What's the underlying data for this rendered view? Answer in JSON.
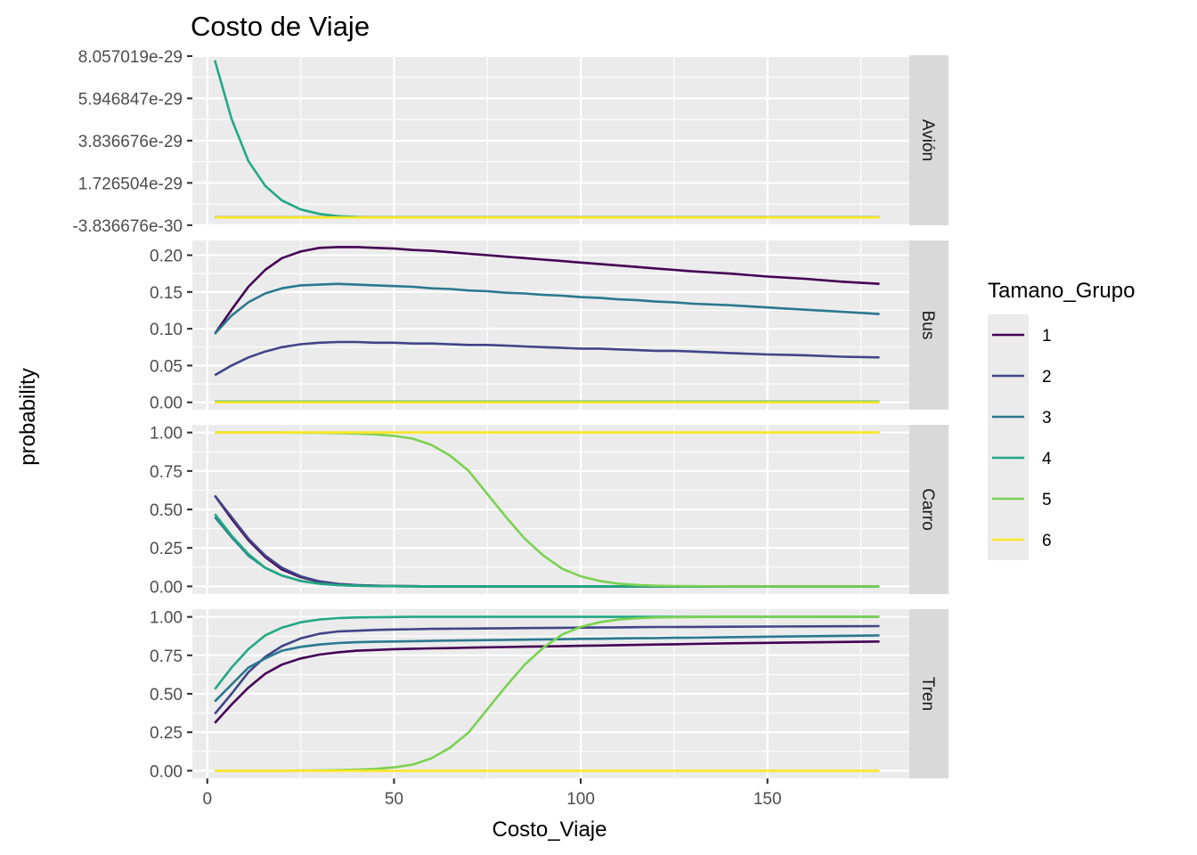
{
  "chart_data": {
    "type": "line",
    "title": "Costo de Viaje",
    "xlabel": "Costo_Viaje",
    "ylabel": "probability",
    "x_ticks": [
      0,
      50,
      100,
      150
    ],
    "xlim": [
      -4,
      188
    ],
    "grid": true,
    "legend": {
      "title": "Tamano_Grupo",
      "placement": "right",
      "entries": [
        {
          "label": "1",
          "color": "#440154"
        },
        {
          "label": "2",
          "color": "#414487"
        },
        {
          "label": "3",
          "color": "#2A788E"
        },
        {
          "label": "4",
          "color": "#22A884"
        },
        {
          "label": "5",
          "color": "#7AD151"
        },
        {
          "label": "6",
          "color": "#FDE725"
        }
      ]
    },
    "x": [
      2,
      6.5,
      11,
      15.5,
      20,
      25,
      30,
      35,
      40,
      45,
      50,
      55,
      60,
      65,
      70,
      75,
      80,
      85,
      90,
      95,
      100,
      105,
      110,
      115,
      120,
      125,
      130,
      140,
      150,
      160,
      170,
      180
    ],
    "facets": [
      {
        "label": "Avión",
        "y_ticks": [
          "8.057019e-29",
          "5.946847e-29",
          "3.836676e-29",
          "1.726504e-29",
          "-3.836676e-30"
        ],
        "y_tick_values": [
          8.057019e-29,
          5.946847e-29,
          3.836676e-29,
          1.726504e-29,
          -3.836676e-30
        ],
        "ylim": [
          -3.9e-30,
          8.1e-29
        ],
        "series": [
          {
            "group": "1",
            "values": [
              0,
              0,
              0,
              0,
              0,
              0,
              0,
              0,
              0,
              0,
              0,
              0,
              0,
              0,
              0,
              0,
              0,
              0,
              0,
              0,
              0,
              0,
              0,
              0,
              0,
              0,
              0,
              0,
              0,
              0,
              0,
              0
            ]
          },
          {
            "group": "2",
            "values": [
              0,
              0,
              0,
              0,
              0,
              0,
              0,
              0,
              0,
              0,
              0,
              0,
              0,
              0,
              0,
              0,
              0,
              0,
              0,
              0,
              0,
              0,
              0,
              0,
              0,
              0,
              0,
              0,
              0,
              0,
              0,
              0
            ]
          },
          {
            "group": "3",
            "values": [
              0,
              0,
              0,
              0,
              0,
              0,
              0,
              0,
              0,
              0,
              0,
              0,
              0,
              0,
              0,
              0,
              0,
              0,
              0,
              0,
              0,
              0,
              0,
              0,
              0,
              0,
              0,
              0,
              0,
              0,
              0,
              0
            ]
          },
          {
            "group": "4",
            "values": [
              7.85e-29,
              4.92e-29,
              2.82e-29,
              1.58e-29,
              8.5e-30,
              4e-30,
              1.8e-30,
              7e-31,
              3e-31,
              1e-31,
              0,
              0,
              0,
              0,
              0,
              0,
              0,
              0,
              0,
              0,
              0,
              0,
              0,
              0,
              0,
              0,
              0,
              0,
              0,
              0,
              0,
              0
            ]
          },
          {
            "group": "5",
            "values": [
              0,
              0,
              0,
              0,
              0,
              0,
              0,
              0,
              0,
              0,
              0,
              0,
              0,
              0,
              0,
              0,
              0,
              0,
              0,
              0,
              0,
              0,
              0,
              0,
              0,
              0,
              0,
              0,
              0,
              0,
              0,
              0
            ]
          },
          {
            "group": "6",
            "values": [
              0,
              0,
              0,
              0,
              0,
              0,
              0,
              0,
              0,
              0,
              0,
              0,
              0,
              0,
              0,
              0,
              0,
              0,
              0,
              0,
              0,
              0,
              0,
              0,
              0,
              0,
              0,
              0,
              0,
              0,
              0,
              0
            ]
          }
        ]
      },
      {
        "label": "Bus",
        "y_ticks": [
          "0.20",
          "0.15",
          "0.10",
          "0.05",
          "0.00"
        ],
        "y_tick_values": [
          0.2,
          0.15,
          0.1,
          0.05,
          0.0
        ],
        "ylim": [
          -0.01,
          0.22
        ],
        "series": [
          {
            "group": "1",
            "values": [
              0.093,
              0.126,
              0.157,
              0.18,
              0.196,
              0.205,
              0.21,
              0.211,
              0.211,
              0.21,
              0.209,
              0.207,
              0.206,
              0.204,
              0.202,
              0.2,
              0.198,
              0.196,
              0.194,
              0.192,
              0.19,
              0.188,
              0.186,
              0.184,
              0.182,
              0.18,
              0.178,
              0.175,
              0.171,
              0.168,
              0.164,
              0.161
            ]
          },
          {
            "group": "2",
            "values": [
              0.037,
              0.05,
              0.061,
              0.069,
              0.075,
              0.079,
              0.081,
              0.082,
              0.082,
              0.081,
              0.081,
              0.08,
              0.08,
              0.079,
              0.078,
              0.078,
              0.077,
              0.076,
              0.075,
              0.074,
              0.073,
              0.073,
              0.072,
              0.071,
              0.07,
              0.07,
              0.069,
              0.067,
              0.065,
              0.064,
              0.062,
              0.061
            ]
          },
          {
            "group": "3",
            "values": [
              0.093,
              0.118,
              0.136,
              0.148,
              0.155,
              0.159,
              0.16,
              0.161,
              0.16,
              0.159,
              0.158,
              0.157,
              0.155,
              0.154,
              0.152,
              0.151,
              0.149,
              0.148,
              0.146,
              0.145,
              0.143,
              0.142,
              0.14,
              0.139,
              0.137,
              0.136,
              0.134,
              0.132,
              0.129,
              0.126,
              0.123,
              0.12
            ]
          },
          {
            "group": "4",
            "values": [
              0.001,
              0.001,
              0.001,
              0.001,
              0.001,
              0.001,
              0.001,
              0.001,
              0.001,
              0.001,
              0.001,
              0.001,
              0.001,
              0.001,
              0.001,
              0.001,
              0.001,
              0.001,
              0.001,
              0.001,
              0.001,
              0.001,
              0.001,
              0.001,
              0.001,
              0.001,
              0.001,
              0.001,
              0.001,
              0.001,
              0.001,
              0.001
            ]
          },
          {
            "group": "5",
            "values": [
              0,
              0,
              0,
              0,
              0,
              0,
              0,
              0,
              0,
              0,
              0,
              0,
              0,
              0,
              0,
              0,
              0,
              0,
              0,
              0,
              0,
              0,
              0,
              0,
              0,
              0,
              0,
              0,
              0,
              0,
              0,
              0
            ]
          },
          {
            "group": "6",
            "values": [
              0,
              0,
              0,
              0,
              0,
              0,
              0,
              0,
              0,
              0,
              0,
              0,
              0,
              0,
              0,
              0,
              0,
              0,
              0,
              0,
              0,
              0,
              0,
              0,
              0,
              0,
              0,
              0,
              0,
              0,
              0,
              0
            ]
          }
        ]
      },
      {
        "label": "Carro",
        "y_ticks": [
          "1.00",
          "0.75",
          "0.50",
          "0.25",
          "0.00"
        ],
        "y_tick_values": [
          1.0,
          0.75,
          0.5,
          0.25,
          0.0
        ],
        "ylim": [
          -0.05,
          1.05
        ],
        "series": [
          {
            "group": "1",
            "values": [
              0.59,
              0.44,
              0.3,
              0.19,
              0.11,
              0.06,
              0.03,
              0.015,
              0.008,
              0.004,
              0.002,
              0.001,
              0,
              0,
              0,
              0,
              0,
              0,
              0,
              0,
              0,
              0,
              0,
              0,
              0,
              0,
              0,
              0,
              0,
              0,
              0,
              0
            ]
          },
          {
            "group": "2",
            "values": [
              0.59,
              0.45,
              0.31,
              0.2,
              0.12,
              0.065,
              0.033,
              0.016,
              0.008,
              0.004,
              0.002,
              0.001,
              0,
              0,
              0,
              0,
              0,
              0,
              0,
              0,
              0,
              0,
              0,
              0,
              0,
              0,
              0,
              0,
              0,
              0,
              0,
              0
            ]
          },
          {
            "group": "3",
            "values": [
              0.45,
              0.32,
              0.2,
              0.12,
              0.07,
              0.035,
              0.017,
              0.008,
              0.004,
              0.002,
              0.001,
              0,
              0,
              0,
              0,
              0,
              0,
              0,
              0,
              0,
              0,
              0,
              0,
              0,
              0,
              0,
              0,
              0,
              0,
              0,
              0,
              0
            ]
          },
          {
            "group": "4",
            "values": [
              0.47,
              0.33,
              0.21,
              0.12,
              0.07,
              0.035,
              0.017,
              0.008,
              0.004,
              0.002,
              0.001,
              0,
              0,
              0,
              0,
              0,
              0,
              0,
              0,
              0,
              0,
              0,
              0,
              0,
              0,
              0,
              0,
              0,
              0,
              0,
              0,
              0
            ]
          },
          {
            "group": "5",
            "values": [
              1.0,
              1.0,
              1.0,
              1.0,
              1.0,
              0.999,
              0.998,
              0.996,
              0.993,
              0.988,
              0.978,
              0.96,
              0.92,
              0.85,
              0.75,
              0.6,
              0.45,
              0.31,
              0.2,
              0.115,
              0.065,
              0.035,
              0.018,
              0.009,
              0.004,
              0.002,
              0.001,
              0,
              0,
              0,
              0,
              0
            ]
          },
          {
            "group": "6",
            "values": [
              1,
              1,
              1,
              1,
              1,
              1,
              1,
              1,
              1,
              1,
              1,
              1,
              1,
              1,
              1,
              1,
              1,
              1,
              1,
              1,
              1,
              1,
              1,
              1,
              1,
              1,
              1,
              1,
              1,
              1,
              1,
              1
            ]
          }
        ]
      },
      {
        "label": "Tren",
        "y_ticks": [
          "1.00",
          "0.75",
          "0.50",
          "0.25",
          "0.00"
        ],
        "y_tick_values": [
          1.0,
          0.75,
          0.5,
          0.25,
          0.0
        ],
        "ylim": [
          -0.05,
          1.05
        ],
        "series": [
          {
            "group": "1",
            "values": [
              0.31,
              0.43,
              0.54,
              0.63,
              0.69,
              0.73,
              0.755,
              0.77,
              0.78,
              0.785,
              0.79,
              0.793,
              0.795,
              0.797,
              0.8,
              0.802,
              0.804,
              0.806,
              0.808,
              0.81,
              0.812,
              0.814,
              0.816,
              0.818,
              0.82,
              0.822,
              0.824,
              0.828,
              0.831,
              0.834,
              0.837,
              0.84
            ]
          },
          {
            "group": "2",
            "values": [
              0.37,
              0.5,
              0.64,
              0.74,
              0.81,
              0.86,
              0.89,
              0.905,
              0.91,
              0.915,
              0.918,
              0.92,
              0.922,
              0.923,
              0.924,
              0.925,
              0.926,
              0.927,
              0.928,
              0.929,
              0.93,
              0.931,
              0.932,
              0.933,
              0.934,
              0.934,
              0.935,
              0.936,
              0.937,
              0.938,
              0.939,
              0.94
            ]
          },
          {
            "group": "3",
            "values": [
              0.45,
              0.56,
              0.67,
              0.73,
              0.78,
              0.805,
              0.82,
              0.83,
              0.835,
              0.838,
              0.84,
              0.842,
              0.844,
              0.846,
              0.848,
              0.849,
              0.851,
              0.852,
              0.854,
              0.855,
              0.857,
              0.858,
              0.86,
              0.861,
              0.862,
              0.864,
              0.865,
              0.868,
              0.871,
              0.874,
              0.877,
              0.88
            ]
          },
          {
            "group": "4",
            "values": [
              0.53,
              0.67,
              0.79,
              0.88,
              0.93,
              0.965,
              0.983,
              0.992,
              0.996,
              0.998,
              0.999,
              1,
              1,
              1,
              1,
              1,
              1,
              1,
              1,
              1,
              1,
              1,
              1,
              1,
              1,
              1,
              1,
              1,
              1,
              1,
              1,
              1
            ]
          },
          {
            "group": "5",
            "values": [
              0,
              0,
              0,
              0,
              0,
              0.001,
              0.002,
              0.004,
              0.007,
              0.012,
              0.022,
              0.04,
              0.08,
              0.15,
              0.25,
              0.4,
              0.55,
              0.69,
              0.8,
              0.885,
              0.935,
              0.965,
              0.982,
              0.991,
              0.996,
              0.998,
              0.999,
              1,
              1,
              1,
              1,
              1
            ]
          },
          {
            "group": "6",
            "values": [
              0,
              0,
              0,
              0,
              0,
              0,
              0,
              0,
              0,
              0,
              0,
              0,
              0,
              0,
              0,
              0,
              0,
              0,
              0,
              0,
              0,
              0,
              0,
              0,
              0,
              0,
              0,
              0,
              0,
              0,
              0,
              0
            ]
          }
        ]
      }
    ]
  }
}
